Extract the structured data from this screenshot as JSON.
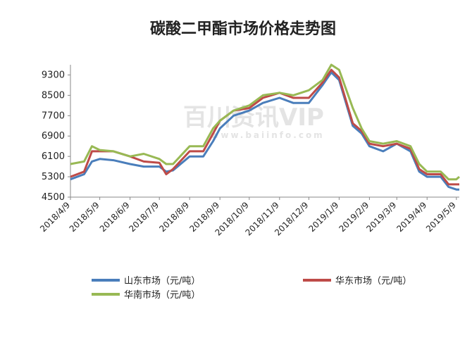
{
  "chart_data": {
    "type": "line",
    "title": "碳酸二甲酯市场价格走势图",
    "watermark": "百川资讯VIP",
    "watermark_url": "www.baiinfo.com",
    "x": [
      "2018/4/9",
      "2018/4/23",
      "2018/5/1",
      "2018/5/9",
      "2018/5/23",
      "2018/6/9",
      "2018/6/23",
      "2018/7/9",
      "2018/7/16",
      "2018/7/23",
      "2018/8/9",
      "2018/8/23",
      "2018/9/2",
      "2018/9/9",
      "2018/9/23",
      "2018/10/9",
      "2018/10/23",
      "2018/11/9",
      "2018/11/23",
      "2018/12/9",
      "2018/12/23",
      "2019/1/1",
      "2019/1/9",
      "2019/1/23",
      "2019/2/1",
      "2019/2/9",
      "2019/2/23",
      "2019/3/9",
      "2019/3/23",
      "2019/4/1",
      "2019/4/9",
      "2019/4/23",
      "2019/5/1",
      "2019/5/9",
      "2019/5/12"
    ],
    "series": [
      {
        "name": "山东市场（元/吨）",
        "color": "#4a7ebb",
        "values": [
          5200,
          5400,
          5900,
          6000,
          5950,
          5800,
          5700,
          5700,
          5500,
          5550,
          6100,
          6100,
          6700,
          7200,
          7700,
          7900,
          8200,
          8400,
          8200,
          8200,
          8900,
          9400,
          9100,
          7300,
          7000,
          6500,
          6300,
          6600,
          6300,
          5500,
          5300,
          5300,
          4900,
          4800,
          4800
        ]
      },
      {
        "name": "华东市场（元/吨）",
        "color": "#be4b48",
        "values": [
          5300,
          5500,
          6300,
          6300,
          6300,
          6100,
          5900,
          5850,
          5400,
          5600,
          6300,
          6300,
          7000,
          7500,
          7900,
          8000,
          8400,
          8600,
          8400,
          8400,
          9000,
          9500,
          9200,
          7400,
          7100,
          6600,
          6500,
          6600,
          6400,
          5600,
          5400,
          5400,
          5000,
          5000,
          5000
        ]
      },
      {
        "name": "华南市场（元/吨）",
        "color": "#98b954",
        "values": [
          5800,
          5900,
          6500,
          6350,
          6300,
          6100,
          6200,
          6000,
          5800,
          5800,
          6500,
          6500,
          7200,
          7500,
          7900,
          8100,
          8500,
          8600,
          8500,
          8700,
          9100,
          9700,
          9500,
          8000,
          7200,
          6700,
          6600,
          6700,
          6500,
          5800,
          5500,
          5500,
          5200,
          5200,
          5300
        ]
      }
    ],
    "ylim": [
      4500,
      9700
    ],
    "yticks": [
      4500,
      5300,
      6100,
      6900,
      7700,
      8500,
      9300
    ],
    "xlim": [
      "2018/4/9",
      "2019/5/12"
    ],
    "xticks": [
      "2018/4/9",
      "2018/5/9",
      "2018/6/9",
      "2018/7/9",
      "2018/8/9",
      "2018/9/9",
      "2018/10/9",
      "2018/11/9",
      "2018/12/9",
      "2019/1/9",
      "2019/2/9",
      "2019/3/9",
      "2019/4/9",
      "2019/5/9"
    ]
  }
}
